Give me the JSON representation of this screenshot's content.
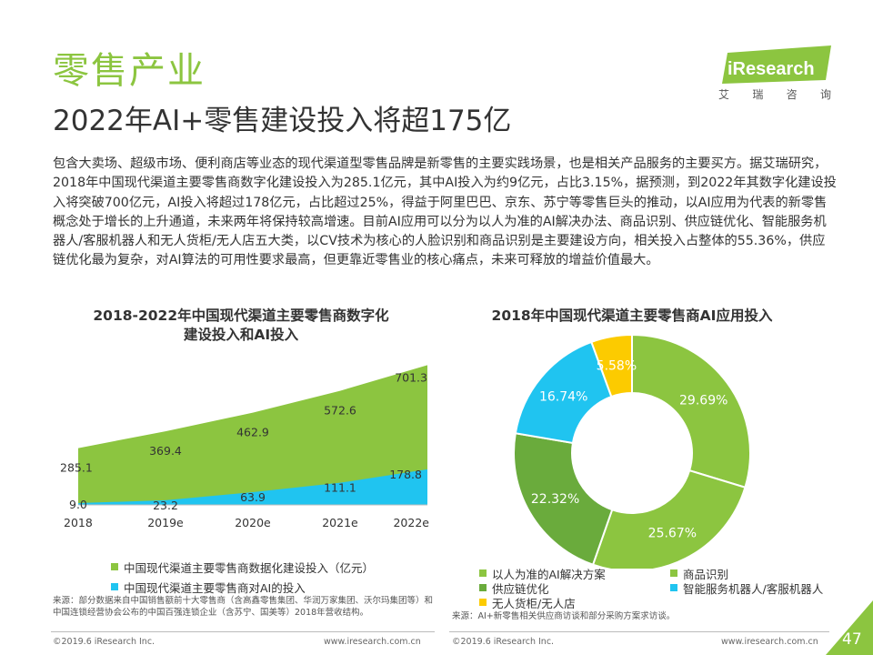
{
  "header": {
    "section_title": "零售产业",
    "headline": "2022年AI+零售建设投入将超175亿",
    "logo_text": "iResearch",
    "logo_sub": [
      "艾",
      "瑞",
      "咨",
      "询"
    ]
  },
  "body_text": "包含大卖场、超级市场、便利商店等业态的现代渠道型零售品牌是新零售的主要实践场景，也是相关产品服务的主要买方。据艾瑞研究，2018年中国现代渠道主要零售商数字化建设投入为285.1亿元，其中AI投入为约9亿元，占比3.15%，据预测，到2022年其数字化建设投入将突破700亿元，AI投入将超过178亿元，占比超过25%，得益于阿里巴巴、京东、苏宁等零售巨头的推动，以AI应用为代表的新零售概念处于增长的上升通道，未来两年将保持较高增速。目前AI应用可以分为以人为准的AI解决办法、商品识别、供应链优化、智能服务机器人/客服机器人和无人货柜/无人店五大类，以CV技术为核心的人脸识别和商品识别是主要建设方向，相关投入占整体的55.36%，供应链优化最为复杂，对AI算法的可用性要求最高，但更靠近零售业的核心痛点，未来可释放的增益价值最大。",
  "colors": {
    "green": "#8cc540",
    "blue": "#20c4f0",
    "dark_green": "#6aab3c",
    "yellow": "#fccb00"
  },
  "chart_data": [
    {
      "type": "area",
      "title": "2018-2022年中国现代渠道主要零售商数字化建设投入和AI投入",
      "title_lines": [
        "2018-2022年中国现代渠道主要零售商数字化",
        "建设投入和AI投入"
      ],
      "categories": [
        "2018",
        "2019e",
        "2020e",
        "2021e",
        "2022e"
      ],
      "series": [
        {
          "name": "中国现代渠道主要零售商数据化建设投入（亿元）",
          "values": [
            285.1,
            369.4,
            462.9,
            572.6,
            701.3
          ],
          "value_labels": [
            "285.1",
            "369.4",
            "462.9",
            "572.6",
            "701.3"
          ],
          "color": "#8cc540"
        },
        {
          "name": "中国现代渠道主要零售商对AI的投入",
          "values": [
            9.0,
            23.2,
            63.9,
            111.1,
            178.8
          ],
          "value_labels": [
            "9.0",
            "23.2",
            "63.9",
            "111.1",
            "178.8"
          ],
          "color": "#20c4f0"
        }
      ],
      "legend_position": "bottom"
    },
    {
      "type": "pie",
      "donut": true,
      "title": "2018年中国现代渠道主要零售商AI应用投入",
      "slices": [
        {
          "label": "以人为准的AI解决方案",
          "value": 29.69,
          "value_label": "29.69%",
          "color": "#8cc540"
        },
        {
          "label": "商品识别",
          "value": 25.67,
          "value_label": "25.67%",
          "color": "#8cc540"
        },
        {
          "label": "供应链优化",
          "value": 22.32,
          "value_label": "22.32%",
          "color": "#6aab3c"
        },
        {
          "label": "智能服务机器人/客服机器人",
          "value": 16.74,
          "value_label": "16.74%",
          "color": "#20c4f0"
        },
        {
          "label": "无人货柜/无人店",
          "value": 5.58,
          "value_label": "5.58%",
          "color": "#fccb00"
        }
      ],
      "legend_position": "bottom"
    }
  ],
  "sources": {
    "left": "来源：部分数据来自中国销售额前十大零售商（含高鑫零售集团、华润万家集团、沃尔玛集团等）和中国连锁经营协会公布的中国百强连锁企业（含苏宁、国美等）2018年营收结构。",
    "right": "来源：AI+新零售相关供应商访谈和部分采购方案求访谈。"
  },
  "footer": {
    "copyright": "©2019.6 iResearch Inc.",
    "website": "www.iresearch.com.cn",
    "page_number": "47"
  }
}
